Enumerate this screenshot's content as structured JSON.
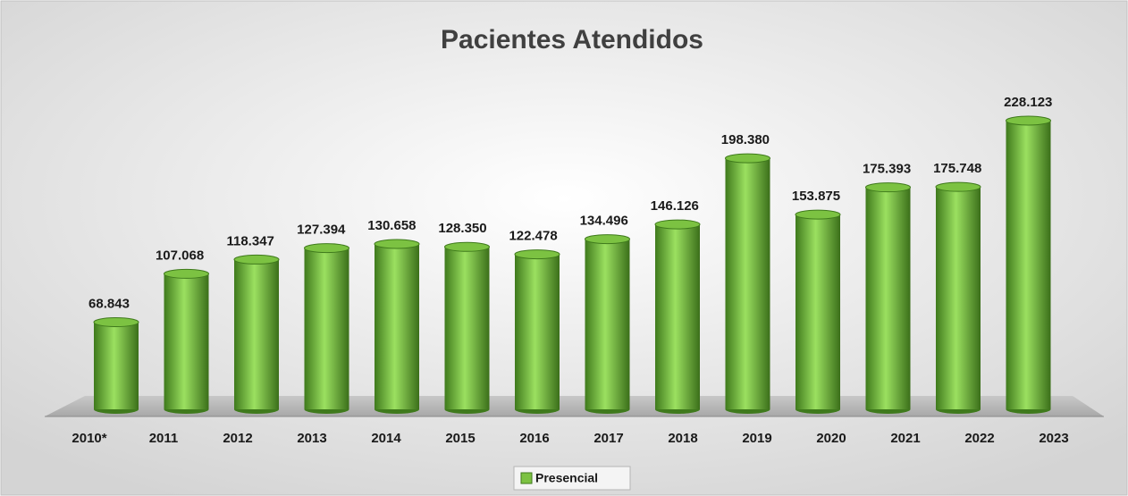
{
  "chart_data": {
    "type": "bar",
    "title": "Pacientes Atendidos",
    "categories": [
      "2010*",
      "2011",
      "2012",
      "2013",
      "2014",
      "2015",
      "2016",
      "2017",
      "2018",
      "2019",
      "2020",
      "2021",
      "2022",
      "2023"
    ],
    "series": [
      {
        "name": "Presencial",
        "color": "#7cc242",
        "values": [
          68843,
          107068,
          118347,
          127394,
          130658,
          128350,
          122478,
          134496,
          146126,
          198380,
          153875,
          175393,
          175748,
          228123
        ],
        "value_labels": [
          "68.843",
          "107.068",
          "118.347",
          "127.394",
          "130.658",
          "128.350",
          "122.478",
          "134.496",
          "146.126",
          "198.380",
          "153.875",
          "175.393",
          "175.748",
          "228.123"
        ]
      }
    ]
  }
}
